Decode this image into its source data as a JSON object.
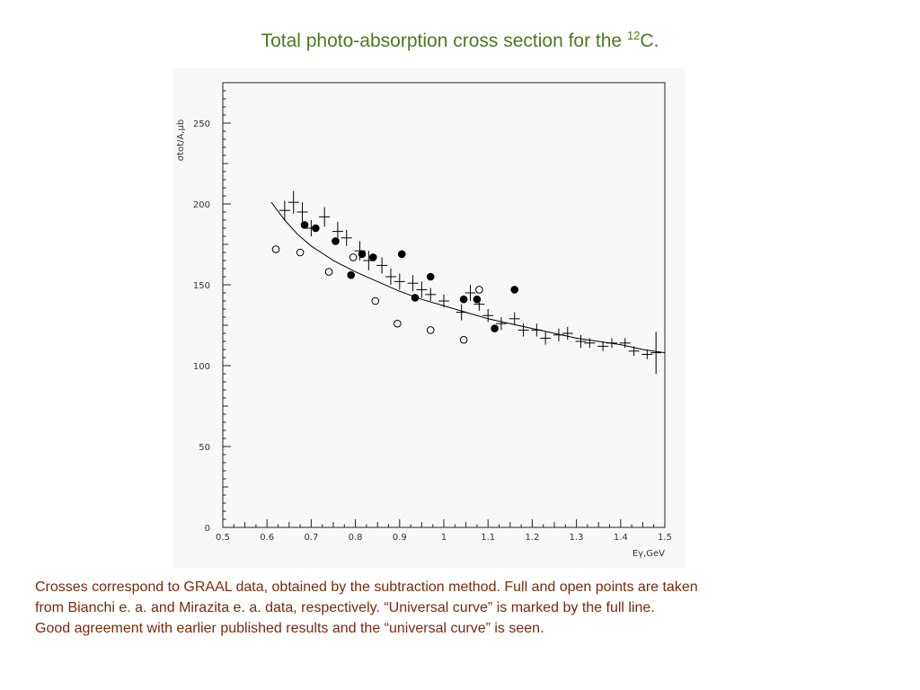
{
  "title": {
    "prefix": "Total photo-absorption cross section for the ",
    "superscript": "12",
    "suffix": "C."
  },
  "caption": {
    "line1": "Crosses correspond to GRAAL data, obtained by the subtraction method.  Full and open points are taken",
    "line2": "from Bianchi e. a. and Mirazita e. a. data, respectively. “Universal curve” is marked by the full line.",
    "line3": "Good agreement with earlier published results and the “universal curve” is seen."
  },
  "colors": {
    "title": "#4a7a1f",
    "caption": "#7a2a0a",
    "plot": "#000000"
  },
  "chart_data": {
    "type": "scatter",
    "title": "",
    "xlabel": "Eγ,GeV",
    "ylabel": "σtot/A,μb",
    "xlim": [
      0.5,
      1.5
    ],
    "ylim": [
      0,
      275
    ],
    "xticks": [
      "0.5",
      "0.6",
      "0.7",
      "0.8",
      "0.9",
      "1",
      "1.1",
      "1.2",
      "1.3",
      "1.4",
      "1.5"
    ],
    "yticks": [
      "0",
      "50",
      "100",
      "150",
      "200",
      "250"
    ],
    "grid": false,
    "series": [
      {
        "marker": "cross",
        "points": [
          [
            0.64,
            196,
            6
          ],
          [
            0.66,
            201,
            7
          ],
          [
            0.68,
            195,
            6
          ],
          [
            0.7,
            185,
            5
          ],
          [
            0.73,
            192,
            6
          ],
          [
            0.76,
            183,
            6
          ],
          [
            0.78,
            179,
            5
          ],
          [
            0.81,
            171,
            6
          ],
          [
            0.83,
            165,
            6
          ],
          [
            0.86,
            162,
            5
          ],
          [
            0.88,
            155,
            5
          ],
          [
            0.9,
            152,
            5
          ],
          [
            0.93,
            151,
            5
          ],
          [
            0.95,
            147,
            5
          ],
          [
            0.97,
            144,
            4
          ],
          [
            1.0,
            140,
            4
          ],
          [
            1.04,
            133,
            5
          ],
          [
            1.06,
            145,
            5
          ],
          [
            1.08,
            138,
            4
          ],
          [
            1.1,
            131,
            4
          ],
          [
            1.13,
            126,
            4
          ],
          [
            1.16,
            129,
            4
          ],
          [
            1.18,
            122,
            4
          ],
          [
            1.21,
            122,
            4
          ],
          [
            1.23,
            117,
            4
          ],
          [
            1.26,
            119,
            4
          ],
          [
            1.28,
            120,
            4
          ],
          [
            1.31,
            115,
            4
          ],
          [
            1.33,
            114,
            3
          ],
          [
            1.36,
            112,
            3
          ],
          [
            1.38,
            114,
            3
          ],
          [
            1.41,
            114,
            3
          ],
          [
            1.43,
            109,
            3
          ],
          [
            1.46,
            107,
            3
          ],
          [
            1.48,
            108,
            13
          ]
        ]
      },
      {
        "marker": "filled-circle",
        "points": [
          [
            0.685,
            187
          ],
          [
            0.71,
            185
          ],
          [
            0.755,
            177
          ],
          [
            0.79,
            156
          ],
          [
            0.815,
            169
          ],
          [
            0.84,
            167
          ],
          [
            0.905,
            169
          ],
          [
            0.935,
            142
          ],
          [
            0.97,
            155
          ],
          [
            1.045,
            141
          ],
          [
            1.075,
            141
          ],
          [
            1.115,
            123
          ],
          [
            1.16,
            147
          ]
        ]
      },
      {
        "marker": "open-circle",
        "points": [
          [
            0.62,
            172
          ],
          [
            0.675,
            170
          ],
          [
            0.74,
            158
          ],
          [
            0.795,
            167
          ],
          [
            0.845,
            140
          ],
          [
            0.895,
            126
          ],
          [
            0.97,
            122
          ],
          [
            1.045,
            116
          ],
          [
            1.08,
            147
          ]
        ]
      },
      {
        "marker": "line",
        "points": [
          [
            0.61,
            201
          ],
          [
            0.64,
            190
          ],
          [
            0.67,
            181
          ],
          [
            0.7,
            174
          ],
          [
            0.75,
            165
          ],
          [
            0.8,
            158
          ],
          [
            0.85,
            152
          ],
          [
            0.9,
            146
          ],
          [
            0.95,
            141
          ],
          [
            1.0,
            137
          ],
          [
            1.05,
            133
          ],
          [
            1.1,
            129
          ],
          [
            1.15,
            126
          ],
          [
            1.2,
            123
          ],
          [
            1.25,
            120
          ],
          [
            1.3,
            117
          ],
          [
            1.35,
            115
          ],
          [
            1.4,
            113
          ],
          [
            1.45,
            110
          ],
          [
            1.5,
            108
          ]
        ]
      }
    ]
  }
}
